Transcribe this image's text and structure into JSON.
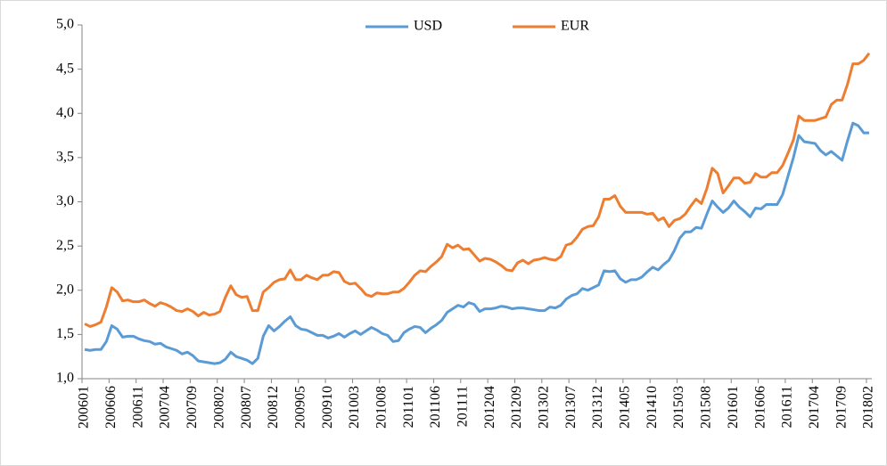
{
  "chart_data": {
    "type": "line",
    "categories": [
      "200601",
      null,
      null,
      null,
      null,
      "200606",
      null,
      null,
      null,
      null,
      "200611",
      null,
      null,
      null,
      null,
      "200704",
      null,
      null,
      null,
      null,
      "200709",
      null,
      null,
      null,
      null,
      "200802",
      null,
      null,
      null,
      null,
      "200807",
      null,
      null,
      null,
      null,
      "200812",
      null,
      null,
      null,
      null,
      "200905",
      null,
      null,
      null,
      null,
      "200910",
      null,
      null,
      null,
      null,
      "201003",
      null,
      null,
      null,
      null,
      "201008",
      null,
      null,
      null,
      null,
      "201101",
      null,
      null,
      null,
      null,
      "201106",
      null,
      null,
      null,
      null,
      "201111",
      null,
      null,
      null,
      null,
      "201204",
      null,
      null,
      null,
      null,
      "201209",
      null,
      null,
      null,
      null,
      "201302",
      null,
      null,
      null,
      null,
      "201307",
      null,
      null,
      null,
      null,
      "201312",
      null,
      null,
      null,
      null,
      "201405",
      null,
      null,
      null,
      null,
      "201410",
      null,
      null,
      null,
      null,
      "201503",
      null,
      null,
      null,
      null,
      "201508",
      null,
      null,
      null,
      null,
      "201601",
      null,
      null,
      null,
      null,
      "201606",
      null,
      null,
      null,
      null,
      "201611",
      null,
      null,
      null,
      null,
      "201704",
      null,
      null,
      null,
      null,
      "201709",
      null,
      null,
      null,
      null,
      "201802"
    ],
    "series": [
      {
        "name": "USD",
        "color": "#5b9bd5",
        "values": [
          1.33,
          1.32,
          1.33,
          1.33,
          1.42,
          1.6,
          1.56,
          1.47,
          1.48,
          1.48,
          1.45,
          1.43,
          1.42,
          1.39,
          1.4,
          1.36,
          1.34,
          1.32,
          1.28,
          1.3,
          1.26,
          1.2,
          1.19,
          1.18,
          1.17,
          1.18,
          1.22,
          1.3,
          1.25,
          1.23,
          1.21,
          1.17,
          1.23,
          1.48,
          1.6,
          1.54,
          1.59,
          1.65,
          1.7,
          1.6,
          1.56,
          1.55,
          1.52,
          1.49,
          1.49,
          1.46,
          1.48,
          1.51,
          1.47,
          1.51,
          1.54,
          1.5,
          1.54,
          1.58,
          1.55,
          1.51,
          1.49,
          1.42,
          1.43,
          1.52,
          1.56,
          1.59,
          1.58,
          1.52,
          1.57,
          1.61,
          1.66,
          1.75,
          1.79,
          1.83,
          1.81,
          1.86,
          1.84,
          1.76,
          1.79,
          1.79,
          1.8,
          1.82,
          1.81,
          1.79,
          1.8,
          1.8,
          1.79,
          1.78,
          1.77,
          1.77,
          1.81,
          1.8,
          1.83,
          1.9,
          1.94,
          1.96,
          2.02,
          2.0,
          2.03,
          2.06,
          2.22,
          2.21,
          2.22,
          2.13,
          2.09,
          2.12,
          2.12,
          2.15,
          2.21,
          2.26,
          2.23,
          2.29,
          2.34,
          2.45,
          2.59,
          2.66,
          2.66,
          2.71,
          2.7,
          2.86,
          3.01,
          2.94,
          2.88,
          2.93,
          3.01,
          2.94,
          2.89,
          2.83,
          2.93,
          2.92,
          2.97,
          2.97,
          2.97,
          3.08,
          3.29,
          3.5,
          3.75,
          3.68,
          3.67,
          3.66,
          3.58,
          3.53,
          3.57,
          3.52,
          3.47,
          3.69,
          3.89,
          3.86,
          3.78,
          3.78
        ]
      },
      {
        "name": "EUR",
        "color": "#ed7d31",
        "values": [
          1.62,
          1.59,
          1.61,
          1.64,
          1.81,
          2.03,
          1.98,
          1.88,
          1.89,
          1.87,
          1.87,
          1.89,
          1.85,
          1.82,
          1.86,
          1.84,
          1.81,
          1.77,
          1.76,
          1.79,
          1.76,
          1.71,
          1.75,
          1.72,
          1.73,
          1.76,
          1.92,
          2.05,
          1.95,
          1.92,
          1.93,
          1.77,
          1.77,
          1.98,
          2.03,
          2.09,
          2.12,
          2.13,
          2.23,
          2.12,
          2.12,
          2.17,
          2.14,
          2.12,
          2.17,
          2.17,
          2.21,
          2.2,
          2.1,
          2.07,
          2.08,
          2.02,
          1.95,
          1.93,
          1.97,
          1.96,
          1.96,
          1.98,
          1.98,
          2.02,
          2.09,
          2.17,
          2.22,
          2.21,
          2.27,
          2.32,
          2.38,
          2.52,
          2.48,
          2.51,
          2.46,
          2.47,
          2.4,
          2.33,
          2.36,
          2.35,
          2.32,
          2.28,
          2.23,
          2.22,
          2.31,
          2.34,
          2.3,
          2.34,
          2.35,
          2.37,
          2.35,
          2.34,
          2.38,
          2.51,
          2.53,
          2.6,
          2.69,
          2.72,
          2.73,
          2.83,
          3.03,
          3.03,
          3.07,
          2.95,
          2.88,
          2.88,
          2.88,
          2.88,
          2.86,
          2.87,
          2.79,
          2.82,
          2.72,
          2.79,
          2.81,
          2.86,
          2.95,
          3.03,
          2.98,
          3.15,
          3.38,
          3.32,
          3.1,
          3.18,
          3.27,
          3.27,
          3.21,
          3.22,
          3.32,
          3.28,
          3.28,
          3.33,
          3.33,
          3.41,
          3.55,
          3.7,
          3.97,
          3.92,
          3.92,
          3.92,
          3.94,
          3.96,
          4.1,
          4.15,
          4.15,
          4.33,
          4.56,
          4.56,
          4.6,
          4.68
        ]
      }
    ],
    "ylim": [
      1,
      5
    ],
    "yticks": [
      {
        "value": 1,
        "label": "1,0"
      },
      {
        "value": 1.5,
        "label": "1,5"
      },
      {
        "value": 2,
        "label": "2,0"
      },
      {
        "value": 2.5,
        "label": "2,5"
      },
      {
        "value": 3,
        "label": "3,0"
      },
      {
        "value": 3.5,
        "label": "3,5"
      },
      {
        "value": 4,
        "label": "4,0"
      },
      {
        "value": 4.5,
        "label": "4,5"
      },
      {
        "value": 5,
        "label": "5,0"
      }
    ],
    "legend": "top"
  }
}
